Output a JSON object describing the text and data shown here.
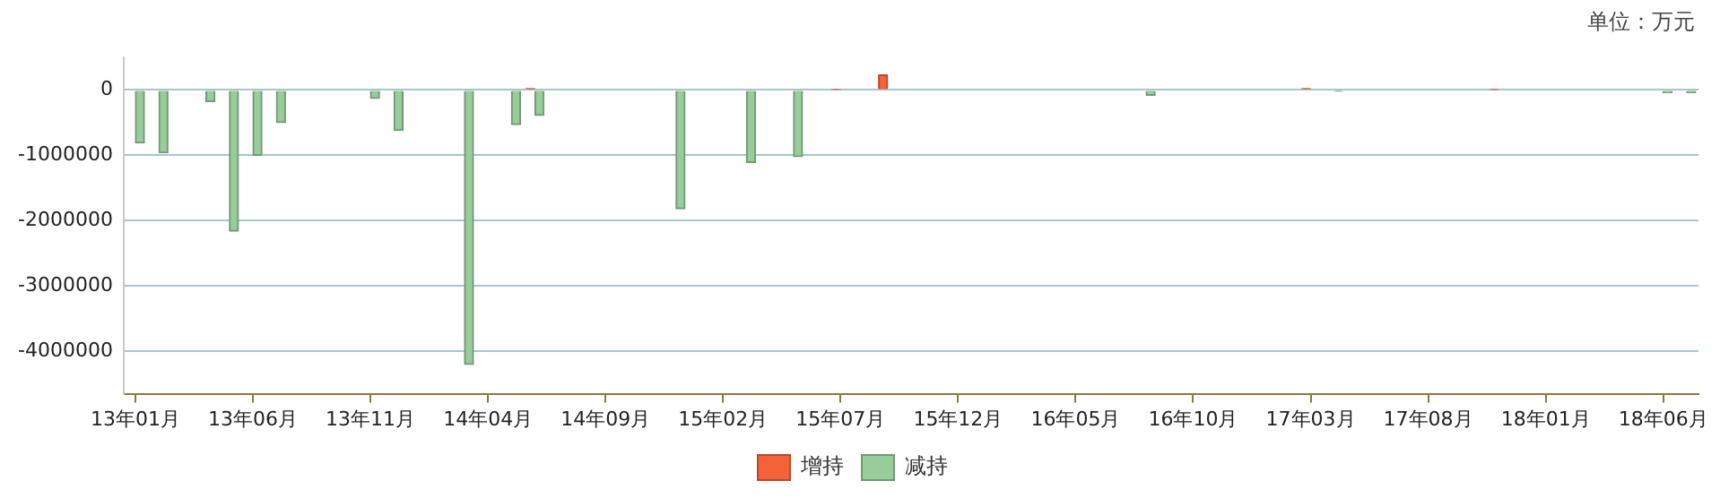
{
  "chart_data": {
    "type": "bar",
    "categories": [
      "13年01月",
      null,
      null,
      null,
      null,
      "13年06月",
      null,
      null,
      null,
      null,
      "13年11月",
      null,
      null,
      null,
      null,
      "14年04月",
      null,
      null,
      null,
      null,
      "14年09月",
      null,
      null,
      null,
      null,
      "15年02月",
      null,
      null,
      null,
      null,
      "15年07月",
      null,
      null,
      null,
      null,
      "15年12月",
      null,
      null,
      null,
      null,
      "16年05月",
      null,
      null,
      null,
      null,
      "16年10月",
      null,
      null,
      null,
      null,
      "17年03月",
      null,
      null,
      null,
      null,
      "17年08月",
      null,
      null,
      null,
      null,
      "18年01月",
      null,
      null,
      null,
      null,
      "18年06月",
      null
    ],
    "series": [
      {
        "name": "增持",
        "color": "#f4623a",
        "values": [
          null,
          null,
          null,
          null,
          null,
          null,
          null,
          null,
          null,
          null,
          null,
          null,
          null,
          null,
          null,
          null,
          null,
          20000,
          null,
          null,
          null,
          null,
          null,
          null,
          null,
          null,
          null,
          null,
          null,
          null,
          10000,
          null,
          230000,
          null,
          null,
          null,
          null,
          null,
          null,
          null,
          null,
          null,
          null,
          null,
          null,
          null,
          null,
          null,
          null,
          null,
          20000,
          null,
          null,
          null,
          null,
          null,
          null,
          null,
          10000,
          null,
          null,
          null,
          null,
          null,
          null,
          null,
          null
        ]
      },
      {
        "name": "减持",
        "color": "#98cc9a",
        "values": [
          -810000,
          -960000,
          null,
          -180000,
          -2160000,
          -1000000,
          -500000,
          null,
          null,
          null,
          -130000,
          -620000,
          null,
          null,
          -4200000,
          null,
          -530000,
          -390000,
          null,
          null,
          null,
          null,
          null,
          -1820000,
          null,
          null,
          -1110000,
          null,
          -1020000,
          null,
          null,
          null,
          null,
          null,
          null,
          null,
          null,
          null,
          null,
          null,
          null,
          null,
          null,
          -80000,
          null,
          null,
          null,
          null,
          null,
          null,
          null,
          -20000,
          null,
          null,
          null,
          null,
          null,
          null,
          null,
          null,
          null,
          null,
          null,
          null,
          null,
          -40000,
          -40000
        ]
      }
    ],
    "ylim": [
      -4650000,
      500000
    ],
    "yticks": [
      -4000000,
      -3000000,
      -2000000,
      -1000000,
      0
    ],
    "grid": "y",
    "legend": "bottom",
    "annotations": [
      "单位：万元"
    ]
  }
}
